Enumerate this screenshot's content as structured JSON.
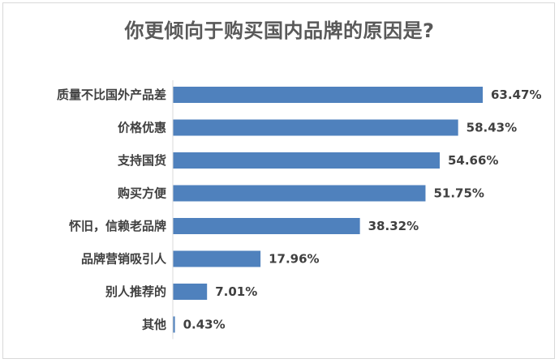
{
  "chart_data": {
    "type": "bar",
    "orientation": "horizontal",
    "title": "你更倾向于购买国内品牌的原因是?",
    "categories": [
      "质量不比国外产品差",
      "价格优惠",
      "支持国货",
      "购买方便",
      "怀旧，信赖老品牌",
      "品牌营销吸引人",
      "别人推荐的",
      "其他"
    ],
    "values": [
      63.47,
      58.43,
      54.66,
      51.75,
      38.32,
      17.96,
      7.01,
      0.43
    ],
    "value_labels": [
      "63.47%",
      "58.43%",
      "54.66%",
      "51.75%",
      "38.32%",
      "17.96%",
      "7.01%",
      "0.43%"
    ],
    "xlim": [
      0,
      70
    ],
    "grid": false,
    "legend": "none",
    "bar_color": "#4f81bd"
  }
}
